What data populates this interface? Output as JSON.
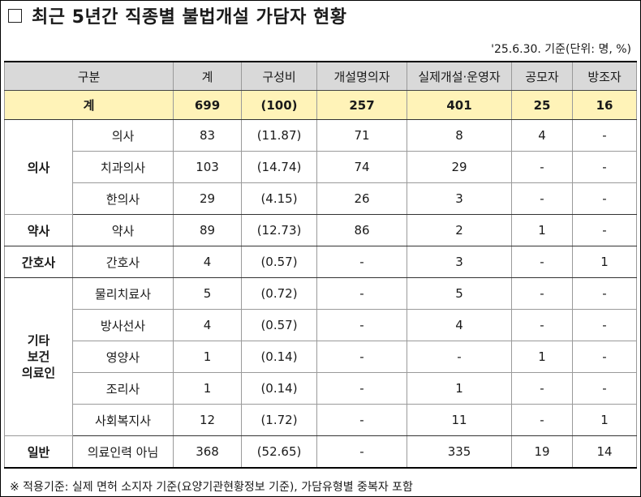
{
  "title": "최근 5년간 직종별 불법개설 가담자 현황",
  "asof": "'25.6.30. 기준(단위: 명, %)",
  "header": [
    "구분",
    "계",
    "구성비",
    "개설명의자",
    "실제개설·운영자",
    "공모자",
    "방조자"
  ],
  "total": {
    "label": "계",
    "cells": [
      "699",
      "(100)",
      "257",
      "401",
      "25",
      "16"
    ]
  },
  "groups": {
    "doctor": {
      "label": "의사",
      "rows": [
        {
          "sub": "의사",
          "cells": [
            "83",
            "(11.87)",
            "71",
            "8",
            "4",
            "-"
          ]
        },
        {
          "sub": "치과의사",
          "cells": [
            "103",
            "(14.74)",
            "74",
            "29",
            "-",
            "-"
          ]
        },
        {
          "sub": "한의사",
          "cells": [
            "29",
            "(4.15)",
            "26",
            "3",
            "-",
            "-"
          ]
        }
      ]
    },
    "pharm": {
      "label": "약사",
      "rows": [
        {
          "sub": "약사",
          "cells": [
            "89",
            "(12.73)",
            "86",
            "2",
            "1",
            "-"
          ]
        }
      ]
    },
    "nurse": {
      "label": "간호사",
      "rows": [
        {
          "sub": "간호사",
          "cells": [
            "4",
            "(0.57)",
            "-",
            "3",
            "-",
            "1"
          ]
        }
      ]
    },
    "other": {
      "label_lines": [
        "기타",
        "보건",
        "의료인"
      ],
      "rows": [
        {
          "sub": "물리치료사",
          "cells": [
            "5",
            "(0.72)",
            "-",
            "5",
            "-",
            "-"
          ]
        },
        {
          "sub": "방사선사",
          "cells": [
            "4",
            "(0.57)",
            "-",
            "4",
            "-",
            "-"
          ]
        },
        {
          "sub": "영양사",
          "cells": [
            "1",
            "(0.14)",
            "-",
            "-",
            "1",
            "-"
          ]
        },
        {
          "sub": "조리사",
          "cells": [
            "1",
            "(0.14)",
            "-",
            "1",
            "-",
            "-"
          ]
        },
        {
          "sub": "사회복지사",
          "cells": [
            "12",
            "(1.72)",
            "-",
            "11",
            "-",
            "1"
          ]
        }
      ]
    },
    "general": {
      "label": "일반",
      "rows": [
        {
          "sub": "의료인력 아님",
          "cells": [
            "368",
            "(52.65)",
            "-",
            "335",
            "19",
            "14"
          ]
        }
      ]
    }
  },
  "note": "※ 적용기준: 실제 면허 소지자 기준(요양기관현황정보 기준), 가담유형별 중복자 포함"
}
